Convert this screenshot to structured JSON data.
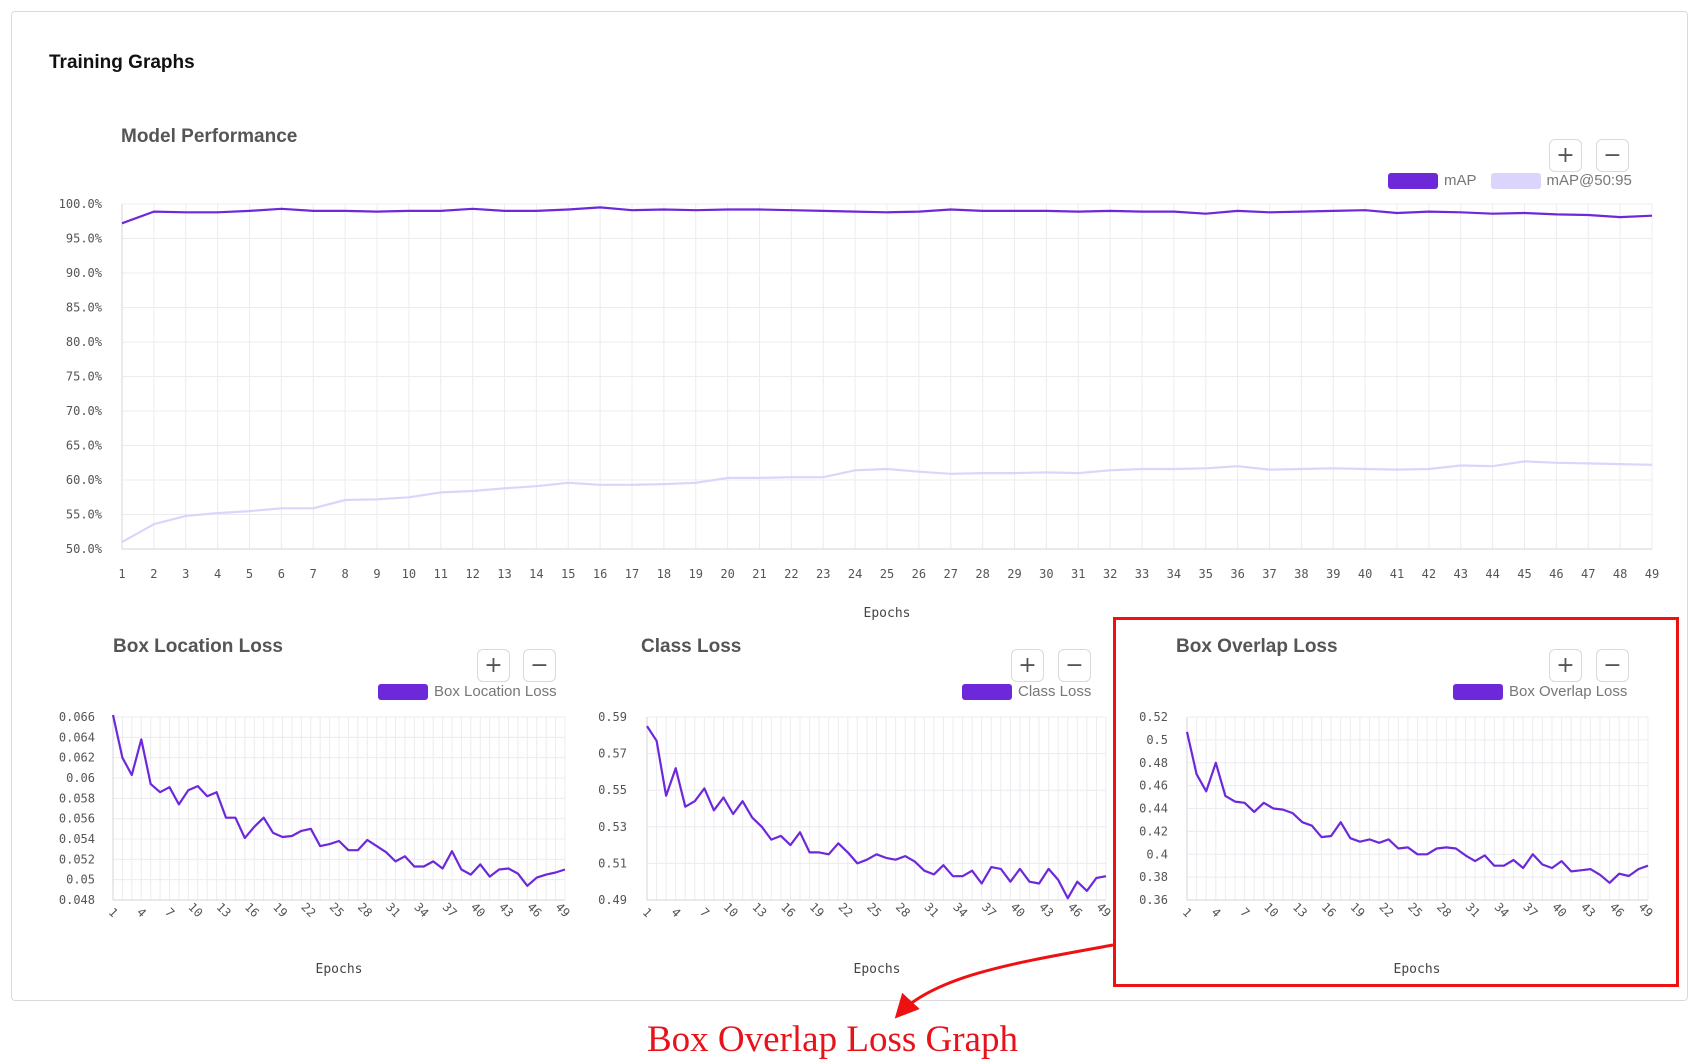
{
  "card": {
    "title": "Training Graphs"
  },
  "zoom": {
    "in_label": "+",
    "out_label": "−"
  },
  "colors": {
    "primary": "#6d28d9",
    "secondary": "#dcd5fb",
    "grid": "#ececf0",
    "highlight": "#ee1111"
  },
  "icons": {
    "zoom_in": "plus-icon",
    "zoom_out": "minus-icon"
  },
  "callout": {
    "text": "Box Overlap Loss Graph"
  },
  "chart_data": [
    {
      "type": "line",
      "title": "Model Performance",
      "xlabel": "Epochs",
      "ylabel": "",
      "ylim": [
        50,
        100
      ],
      "yticks": [
        "100.0%",
        "95.0%",
        "90.0%",
        "85.0%",
        "80.0%",
        "75.0%",
        "70.0%",
        "65.0%",
        "60.0%",
        "55.0%",
        "50.0%"
      ],
      "x": [
        1,
        2,
        3,
        4,
        5,
        6,
        7,
        8,
        9,
        10,
        11,
        12,
        13,
        14,
        15,
        16,
        17,
        18,
        19,
        20,
        21,
        22,
        23,
        24,
        25,
        26,
        27,
        28,
        29,
        30,
        31,
        32,
        33,
        34,
        35,
        36,
        37,
        38,
        39,
        40,
        41,
        42,
        43,
        44,
        45,
        46,
        47,
        48,
        49
      ],
      "legend_position": "top-right",
      "grid": true,
      "series": [
        {
          "name": "mAP",
          "color": "#6d28d9",
          "values": [
            97.2,
            98.9,
            98.8,
            98.8,
            99.0,
            99.3,
            99.0,
            99.0,
            98.9,
            99.0,
            99.0,
            99.3,
            99.0,
            99.0,
            99.2,
            99.5,
            99.1,
            99.2,
            99.1,
            99.2,
            99.2,
            99.1,
            99.0,
            98.9,
            98.8,
            98.9,
            99.2,
            99.0,
            99.0,
            99.0,
            98.9,
            99.0,
            98.9,
            98.9,
            98.6,
            99.0,
            98.8,
            98.9,
            99.0,
            99.1,
            98.7,
            98.9,
            98.8,
            98.6,
            98.7,
            98.5,
            98.4,
            98.1,
            98.3
          ]
        },
        {
          "name": "mAP@50:95",
          "color": "#dcd5fb",
          "values": [
            51.0,
            53.6,
            54.8,
            55.2,
            55.5,
            55.9,
            55.9,
            57.1,
            57.2,
            57.5,
            58.2,
            58.4,
            58.8,
            59.1,
            59.6,
            59.3,
            59.3,
            59.4,
            59.6,
            60.3,
            60.3,
            60.4,
            60.4,
            61.4,
            61.6,
            61.2,
            60.9,
            61.0,
            61.0,
            61.1,
            61.0,
            61.4,
            61.6,
            61.6,
            61.7,
            62.0,
            61.5,
            61.6,
            61.7,
            61.6,
            61.5,
            61.6,
            62.1,
            62.0,
            62.7,
            62.5,
            62.4,
            62.3,
            62.2
          ]
        }
      ]
    },
    {
      "type": "line",
      "title": "Box Location Loss",
      "xlabel": "Epochs",
      "ylabel": "",
      "ylim": [
        0.048,
        0.066
      ],
      "yticks": [
        "0.066",
        "0.064",
        "0.062",
        "0.06",
        "0.058",
        "0.056",
        "0.054",
        "0.052",
        "0.05",
        "0.048"
      ],
      "xticks": [
        "1",
        "4",
        "7",
        "10",
        "13",
        "16",
        "19",
        "22",
        "25",
        "28",
        "31",
        "34",
        "37",
        "40",
        "43",
        "46",
        "49"
      ],
      "x": [
        1,
        2,
        3,
        4,
        5,
        6,
        7,
        8,
        9,
        10,
        11,
        12,
        13,
        14,
        15,
        16,
        17,
        18,
        19,
        20,
        21,
        22,
        23,
        24,
        25,
        26,
        27,
        28,
        29,
        30,
        31,
        32,
        33,
        34,
        35,
        36,
        37,
        38,
        39,
        40,
        41,
        42,
        43,
        44,
        45,
        46,
        47,
        48,
        49
      ],
      "legend_position": "top-right",
      "grid": true,
      "series": [
        {
          "name": "Box Location Loss",
          "color": "#6d28d9",
          "values": [
            0.0662,
            0.062,
            0.0603,
            0.0638,
            0.0594,
            0.0586,
            0.0591,
            0.0574,
            0.0588,
            0.0592,
            0.0582,
            0.0586,
            0.0561,
            0.0561,
            0.0541,
            0.0552,
            0.0561,
            0.0546,
            0.0542,
            0.0543,
            0.0548,
            0.055,
            0.0533,
            0.0535,
            0.0538,
            0.0529,
            0.0529,
            0.0539,
            0.0533,
            0.0527,
            0.0518,
            0.0523,
            0.0513,
            0.0513,
            0.0518,
            0.0511,
            0.0528,
            0.051,
            0.0505,
            0.0515,
            0.0503,
            0.051,
            0.0511,
            0.0506,
            0.0494,
            0.0502,
            0.0505,
            0.0507,
            0.051
          ]
        }
      ]
    },
    {
      "type": "line",
      "title": "Class Loss",
      "xlabel": "Epochs",
      "ylabel": "",
      "ylim": [
        0.49,
        0.59
      ],
      "yticks": [
        "0.59",
        "0.57",
        "0.55",
        "0.53",
        "0.51",
        "0.49"
      ],
      "xticks": [
        "1",
        "4",
        "7",
        "10",
        "13",
        "16",
        "19",
        "22",
        "25",
        "28",
        "31",
        "34",
        "37",
        "40",
        "43",
        "46",
        "49"
      ],
      "x": [
        1,
        2,
        3,
        4,
        5,
        6,
        7,
        8,
        9,
        10,
        11,
        12,
        13,
        14,
        15,
        16,
        17,
        18,
        19,
        20,
        21,
        22,
        23,
        24,
        25,
        26,
        27,
        28,
        29,
        30,
        31,
        32,
        33,
        34,
        35,
        36,
        37,
        38,
        39,
        40,
        41,
        42,
        43,
        44,
        45,
        46,
        47,
        48,
        49
      ],
      "legend_position": "top-right",
      "grid": true,
      "series": [
        {
          "name": "Class Loss",
          "color": "#6d28d9",
          "values": [
            0.585,
            0.577,
            0.547,
            0.562,
            0.541,
            0.544,
            0.551,
            0.539,
            0.546,
            0.537,
            0.544,
            0.535,
            0.53,
            0.523,
            0.525,
            0.52,
            0.527,
            0.516,
            0.516,
            0.515,
            0.521,
            0.516,
            0.51,
            0.512,
            0.515,
            0.513,
            0.512,
            0.514,
            0.511,
            0.506,
            0.504,
            0.509,
            0.503,
            0.503,
            0.506,
            0.499,
            0.508,
            0.507,
            0.5,
            0.507,
            0.5,
            0.499,
            0.507,
            0.501,
            0.491,
            0.5,
            0.495,
            0.502,
            0.503
          ]
        }
      ]
    },
    {
      "type": "line",
      "title": "Box Overlap Loss",
      "xlabel": "Epochs",
      "ylabel": "",
      "ylim": [
        0.36,
        0.52
      ],
      "yticks": [
        "0.52",
        "0.5",
        "0.48",
        "0.46",
        "0.44",
        "0.42",
        "0.4",
        "0.38",
        "0.36"
      ],
      "xticks": [
        "1",
        "4",
        "7",
        "10",
        "13",
        "16",
        "19",
        "22",
        "25",
        "28",
        "31",
        "34",
        "37",
        "40",
        "43",
        "46",
        "49"
      ],
      "x": [
        1,
        2,
        3,
        4,
        5,
        6,
        7,
        8,
        9,
        10,
        11,
        12,
        13,
        14,
        15,
        16,
        17,
        18,
        19,
        20,
        21,
        22,
        23,
        24,
        25,
        26,
        27,
        28,
        29,
        30,
        31,
        32,
        33,
        34,
        35,
        36,
        37,
        38,
        39,
        40,
        41,
        42,
        43,
        44,
        45,
        46,
        47,
        48,
        49
      ],
      "legend_position": "top-right",
      "grid": true,
      "series": [
        {
          "name": "Box Overlap Loss",
          "color": "#6d28d9",
          "values": [
            0.507,
            0.47,
            0.455,
            0.48,
            0.451,
            0.446,
            0.445,
            0.437,
            0.445,
            0.44,
            0.439,
            0.436,
            0.428,
            0.425,
            0.415,
            0.416,
            0.428,
            0.414,
            0.411,
            0.413,
            0.41,
            0.413,
            0.405,
            0.406,
            0.4,
            0.4,
            0.405,
            0.406,
            0.405,
            0.399,
            0.394,
            0.399,
            0.39,
            0.39,
            0.395,
            0.388,
            0.4,
            0.391,
            0.388,
            0.394,
            0.385,
            0.386,
            0.387,
            0.382,
            0.375,
            0.383,
            0.381,
            0.387,
            0.39
          ]
        }
      ]
    }
  ]
}
